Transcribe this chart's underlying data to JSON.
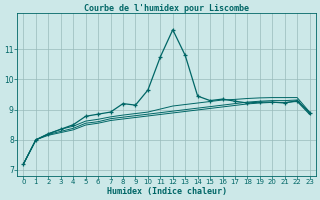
{
  "title": "Courbe de l'humidex pour Liscombe",
  "xlabel": "Humidex (Indice chaleur)",
  "xlim": [
    -0.5,
    23.5
  ],
  "ylim": [
    6.8,
    12.2
  ],
  "background_color": "#cce8e8",
  "grid_color": "#99bbbb",
  "line_color": "#006666",
  "yticks": [
    7,
    8,
    9,
    10,
    11
  ],
  "xticks": [
    0,
    1,
    2,
    3,
    4,
    5,
    6,
    7,
    8,
    9,
    10,
    11,
    12,
    13,
    14,
    15,
    16,
    17,
    18,
    19,
    20,
    21,
    22,
    23
  ],
  "lines": [
    [
      7.2,
      8.0,
      8.2,
      8.35,
      8.5,
      8.78,
      8.85,
      8.92,
      9.2,
      9.15,
      9.65,
      10.75,
      11.65,
      10.8,
      9.45,
      9.3,
      9.35,
      9.28,
      9.22,
      9.25,
      9.25,
      9.22,
      9.3,
      8.9
    ],
    [
      7.2,
      8.0,
      8.2,
      8.35,
      8.45,
      8.62,
      8.68,
      8.76,
      8.82,
      8.87,
      8.92,
      9.02,
      9.12,
      9.17,
      9.22,
      9.27,
      9.32,
      9.34,
      9.37,
      9.39,
      9.4,
      9.4,
      9.4,
      8.92
    ],
    [
      7.2,
      8.0,
      8.18,
      8.28,
      8.38,
      8.55,
      8.6,
      8.7,
      8.75,
      8.8,
      8.85,
      8.9,
      8.95,
      9.0,
      9.05,
      9.1,
      9.15,
      9.2,
      9.25,
      9.28,
      9.3,
      9.3,
      9.32,
      8.88
    ],
    [
      7.2,
      8.0,
      8.15,
      8.24,
      8.33,
      8.49,
      8.55,
      8.64,
      8.69,
      8.74,
      8.79,
      8.84,
      8.89,
      8.94,
      8.99,
      9.04,
      9.09,
      9.14,
      9.19,
      9.22,
      9.24,
      9.24,
      9.27,
      8.84
    ]
  ]
}
